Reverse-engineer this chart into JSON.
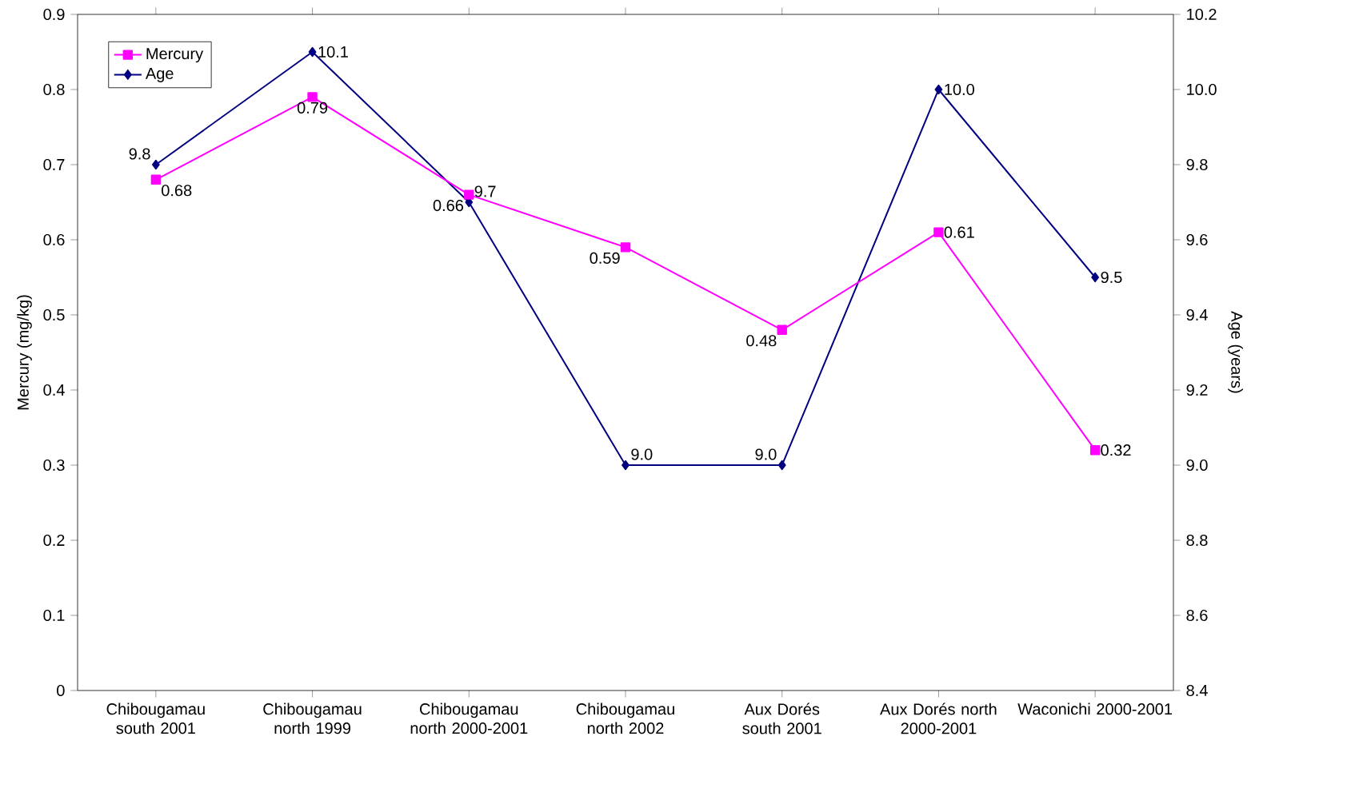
{
  "chart_data": {
    "type": "line",
    "ylabel": "Mercury (mg/kg)",
    "y2label": "Age (years)",
    "categories": [
      "Chibougamau south 2001",
      "Chibougamau north 1999",
      "Chibougamau north 2000-2001",
      "Chibougamau north 2002",
      "Aux Dorés south 2001",
      "Aux Dorés north 2000-2001",
      "Waconichi 2000-2001"
    ],
    "series": [
      {
        "name": "Mercury",
        "color": "#ff00ff",
        "marker": "square",
        "values": [
          0.68,
          0.79,
          0.66,
          0.59,
          0.48,
          0.61,
          0.32
        ],
        "value_labels": [
          "0.68",
          "0.79",
          "0.66",
          "0.59",
          "0.48",
          "0.61",
          "0.32"
        ]
      },
      {
        "name": "Age",
        "color": "#000080",
        "marker": "diamond",
        "axis": "y2",
        "values": [
          9.8,
          10.1,
          9.7,
          9.0,
          9.0,
          10.0,
          9.5
        ],
        "value_labels": [
          "9.8",
          "10.1",
          "9.7",
          "9.0",
          "9.0",
          "10.0",
          "9.5"
        ]
      }
    ],
    "ylim": [
      0,
      0.9
    ],
    "yticks": [
      0,
      0.1,
      0.2,
      0.3,
      0.4,
      0.5,
      0.6,
      0.7,
      0.8,
      0.9
    ],
    "y2lim": [
      8.4,
      10.2
    ],
    "y2ticks": [
      8.4,
      8.6,
      8.8,
      {
        "value": 9,
        "label": "9.0"
      },
      9.2,
      9.4,
      9.6,
      9.8,
      {
        "value": 10,
        "label": "10.0"
      },
      10.2
    ],
    "legend": "top left",
    "line_style": "solid",
    "grid": false
  }
}
